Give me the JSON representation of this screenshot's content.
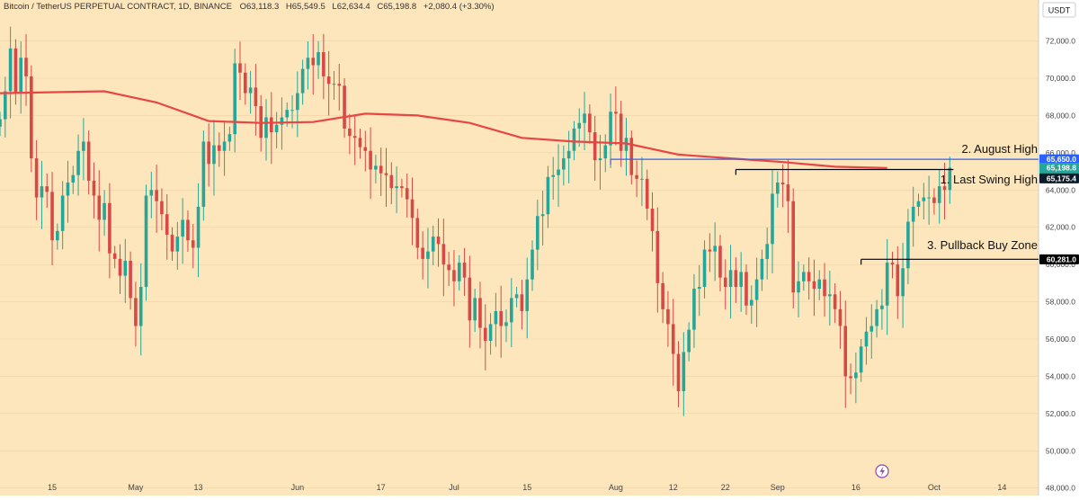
{
  "header": {
    "symbol": "Bitcoin / TetherUS PERPETUAL CONTRACT, 1D, BINANCE",
    "open_label": "O",
    "open": "63,118.3",
    "high_label": "H",
    "high": "65,549.5",
    "low_label": "L",
    "low": "62,634.4",
    "close_label": "C",
    "close": "65,198.8",
    "change": "+2,080.4 (+3.30%)"
  },
  "currency": "USDT",
  "colors": {
    "background": "#fde6bb",
    "up": "#26a69a",
    "down": "#d84848",
    "ma": "#e84545",
    "august_line": "#2962ff",
    "level_line": "#000000",
    "axis_text": "#444444",
    "price_tag": "#26a69a",
    "ma_tag": "#0d1b2a"
  },
  "badge_icon": "lightning-icon",
  "chart_data": {
    "type": "candlestick",
    "title": "Bitcoin / TetherUS PERPETUAL CONTRACT, 1D, BINANCE",
    "ylim": [
      47600,
      74200
    ],
    "y_ticks": [
      48000,
      50000,
      52000,
      54000,
      56000,
      58000,
      60000,
      62000,
      64000,
      66000,
      68000,
      70000,
      72000
    ],
    "y_tick_labels": [
      "48,000.0",
      "50,000.0",
      "52,000.0",
      "54,000.0",
      "56,000.0",
      "58,000.0",
      "60,000.0",
      "62,000.0",
      "64,000.0",
      "66,000.0",
      "68,000.0",
      "70,000.0",
      "72,000.0"
    ],
    "x_start": "2024-04-05",
    "x_end": "2024-10-21",
    "x_ticks": [
      {
        "date": "2024-04-15",
        "label": "15"
      },
      {
        "date": "2024-05-01",
        "label": "May"
      },
      {
        "date": "2024-05-13",
        "label": "13"
      },
      {
        "date": "2024-06-01",
        "label": "Jun"
      },
      {
        "date": "2024-06-17",
        "label": "17"
      },
      {
        "date": "2024-07-01",
        "label": "Jul"
      },
      {
        "date": "2024-07-15",
        "label": "15"
      },
      {
        "date": "2024-08-01",
        "label": "Aug"
      },
      {
        "date": "2024-08-12",
        "label": "12"
      },
      {
        "date": "2024-08-22",
        "label": "22"
      },
      {
        "date": "2024-09-01",
        "label": "Sep"
      },
      {
        "date": "2024-09-16",
        "label": "16"
      },
      {
        "date": "2024-10-01",
        "label": "Oct"
      },
      {
        "date": "2024-10-14",
        "label": "14"
      }
    ],
    "candles_start": "2024-04-05",
    "closes": [
      67800,
      69300,
      71600,
      69200,
      71100,
      70100,
      65700,
      63600,
      64200,
      63900,
      61300,
      61800,
      63700,
      64400,
      64800,
      66100,
      66600,
      64500,
      63700,
      62400,
      63300,
      60600,
      60300,
      59400,
      60200,
      58200,
      56700,
      58800,
      63700,
      64000,
      63400,
      62700,
      61600,
      60700,
      61500,
      62400,
      61300,
      60900,
      63100,
      66600,
      65400,
      66400,
      66100,
      66600,
      67000,
      70800,
      70300,
      69200,
      69500,
      68500,
      66800,
      67900,
      67100,
      67500,
      67900,
      68300,
      68300,
      69200,
      70500,
      71100,
      70700,
      71400,
      70100,
      69700,
      69700,
      69600,
      67300,
      66900,
      66800,
      66300,
      66100,
      65100,
      65300,
      64900,
      64800,
      64100,
      64200,
      64100,
      63500,
      62500,
      60900,
      60300,
      60700,
      61500,
      61100,
      60000,
      59700,
      59100,
      60100,
      59300,
      57000,
      58200,
      56600,
      55900,
      56800,
      57500,
      56700,
      56900,
      58200,
      58400,
      57500,
      59200,
      60800,
      62600,
      62700,
      64700,
      64800,
      65100,
      65700,
      66100,
      67300,
      67600,
      68100,
      67100,
      65600,
      65700,
      66400,
      68200,
      68100,
      66100,
      66800,
      64800,
      64600,
      64600,
      63000,
      61800,
      59000,
      57600,
      56800,
      55200,
      53200,
      55300,
      56500,
      58700,
      58800,
      60800,
      60700,
      61000,
      59300,
      58800,
      59700,
      58800,
      59600,
      57800,
      58100,
      59200,
      60300,
      61100,
      63800,
      64400,
      64300,
      63400,
      58500,
      59100,
      59600,
      59100,
      58700,
      59200,
      58300,
      58400,
      57600,
      56700,
      54000,
      53900,
      54200,
      55600,
      56400,
      56700,
      57600,
      57800,
      60100,
      60000,
      58300,
      59800,
      62300,
      63100,
      63400,
      63600,
      63600,
      63300,
      64200,
      64000,
      65200
    ],
    "ma_series": [
      {
        "date": "2024-04-05",
        "value": 69200
      },
      {
        "date": "2024-04-25",
        "value": 69300
      },
      {
        "date": "2024-05-05",
        "value": 68700
      },
      {
        "date": "2024-05-15",
        "value": 67700
      },
      {
        "date": "2024-05-25",
        "value": 67600
      },
      {
        "date": "2024-06-04",
        "value": 67650
      },
      {
        "date": "2024-06-14",
        "value": 68100
      },
      {
        "date": "2024-06-24",
        "value": 68000
      },
      {
        "date": "2024-07-04",
        "value": 67600
      },
      {
        "date": "2024-07-14",
        "value": 66800
      },
      {
        "date": "2024-07-24",
        "value": 66600
      },
      {
        "date": "2024-08-03",
        "value": 66500
      },
      {
        "date": "2024-08-13",
        "value": 65900
      },
      {
        "date": "2024-08-23",
        "value": 65700
      },
      {
        "date": "2024-09-02",
        "value": 65500
      },
      {
        "date": "2024-09-12",
        "value": 65250
      },
      {
        "date": "2024-09-22",
        "value": 65175
      }
    ],
    "levels": [
      {
        "name": "2. August High",
        "price": 65650,
        "from": "2024-07-31",
        "to": "2024-10-21",
        "style": "blue",
        "tag": "65,650.0"
      },
      {
        "name": "1. Last Swing High",
        "price": 65100,
        "from": "2024-08-24",
        "to": "2024-09-23",
        "style": "black",
        "tag": ""
      },
      {
        "name": "3. Pullback Buy Zone",
        "price": 60281,
        "from": "2024-09-17",
        "to": "2024-10-21",
        "style": "black",
        "tag": "60,281.0"
      }
    ],
    "annotations": [
      "2. August High",
      "1. Last Swing High",
      "3. Pullback Buy Zone"
    ],
    "last_price": {
      "price": 65198.8,
      "label": "65,198.8",
      "countdown": "07:41:16"
    },
    "ma_last": {
      "price": 65175.4,
      "label": "65,175.4"
    }
  }
}
